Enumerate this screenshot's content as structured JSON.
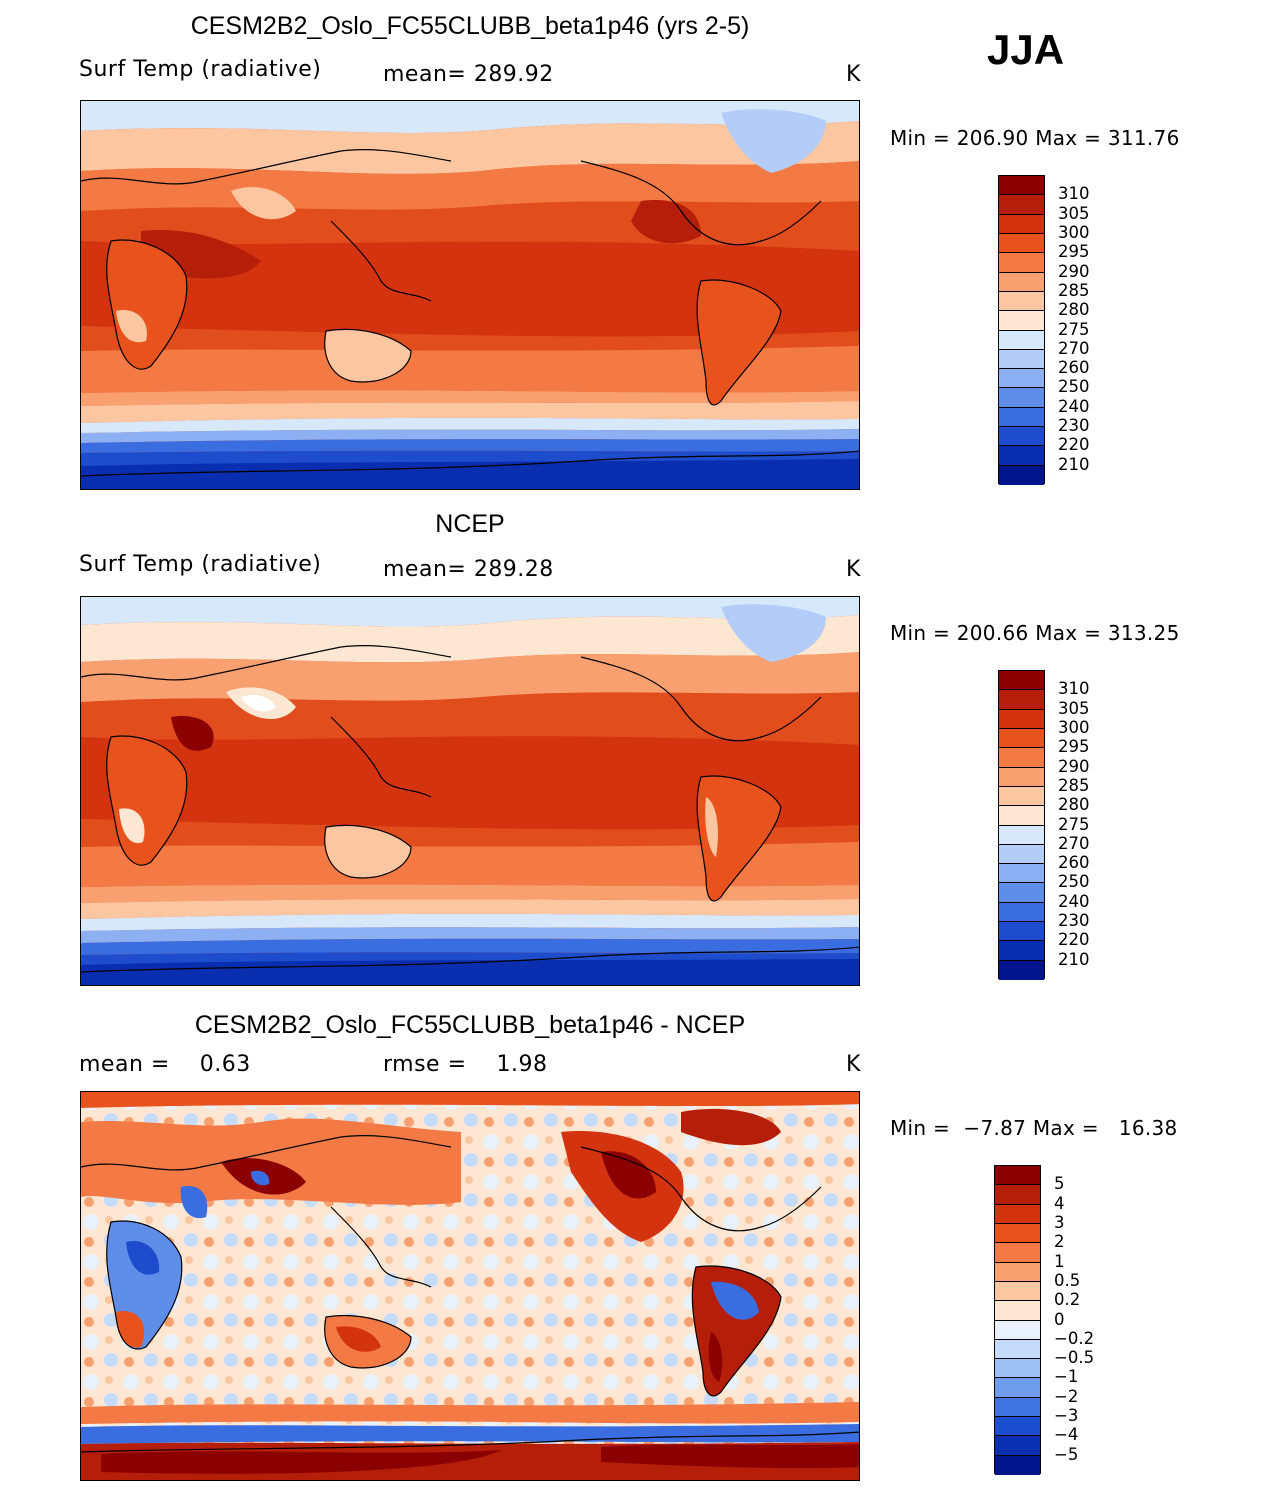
{
  "season": "JJA",
  "panels": [
    {
      "id": "model",
      "title": "CESM2B2_Oslo_FC55CLUBB_beta1p46 (yrs 2-5)",
      "variable": "Surf Temp (radiative)",
      "stat": "mean= 289.92",
      "units": "K",
      "minmax": "Min = 206.90 Max = 311.76",
      "colorbar_labels": [
        "310",
        "305",
        "300",
        "295",
        "290",
        "285",
        "280",
        "275",
        "270",
        "260",
        "250",
        "240",
        "230",
        "220",
        "210"
      ]
    },
    {
      "id": "obs",
      "title": "NCEP",
      "variable": "Surf Temp (radiative)",
      "stat": "mean= 289.28",
      "units": "K",
      "minmax": "Min = 200.66 Max = 313.25",
      "colorbar_labels": [
        "310",
        "305",
        "300",
        "295",
        "290",
        "285",
        "280",
        "275",
        "270",
        "260",
        "250",
        "240",
        "230",
        "220",
        "210"
      ]
    },
    {
      "id": "diff",
      "title": "CESM2B2_Oslo_FC55CLUBB_beta1p46 - NCEP",
      "stat_left": "mean =    0.63",
      "stat_mid": "rmse =    1.98",
      "units": "K",
      "minmax": "Min =  −7.87 Max =   16.38",
      "colorbar_labels": [
        "5",
        "4",
        "3",
        "2",
        "1",
        "0.5",
        "0.2",
        "0",
        "−0.2",
        "−0.5",
        "−1",
        "−2",
        "−3",
        "−4",
        "−5"
      ]
    }
  ],
  "colors": {
    "abs_scale": [
      "#8b0000",
      "#b51f0a",
      "#d43310",
      "#e8521c",
      "#f37a45",
      "#f9a071",
      "#fcc6a1",
      "#fde6d2",
      "#d8e8fb",
      "#b3cdf8",
      "#8cb0f2",
      "#5f8ee9",
      "#3a6ee0",
      "#1d4dcc",
      "#0a2eb0",
      "#00158c"
    ],
    "diff_scale": [
      "#8b0000",
      "#b51f0a",
      "#d43310",
      "#e8521c",
      "#f37a45",
      "#f9a071",
      "#fcc6a1",
      "#fde6d2",
      "#e9f1fc",
      "#c6dbf9",
      "#9fc0f4",
      "#6f9cec",
      "#3f75e2",
      "#1b4fd0",
      "#0a2fb0",
      "#00158c"
    ]
  }
}
